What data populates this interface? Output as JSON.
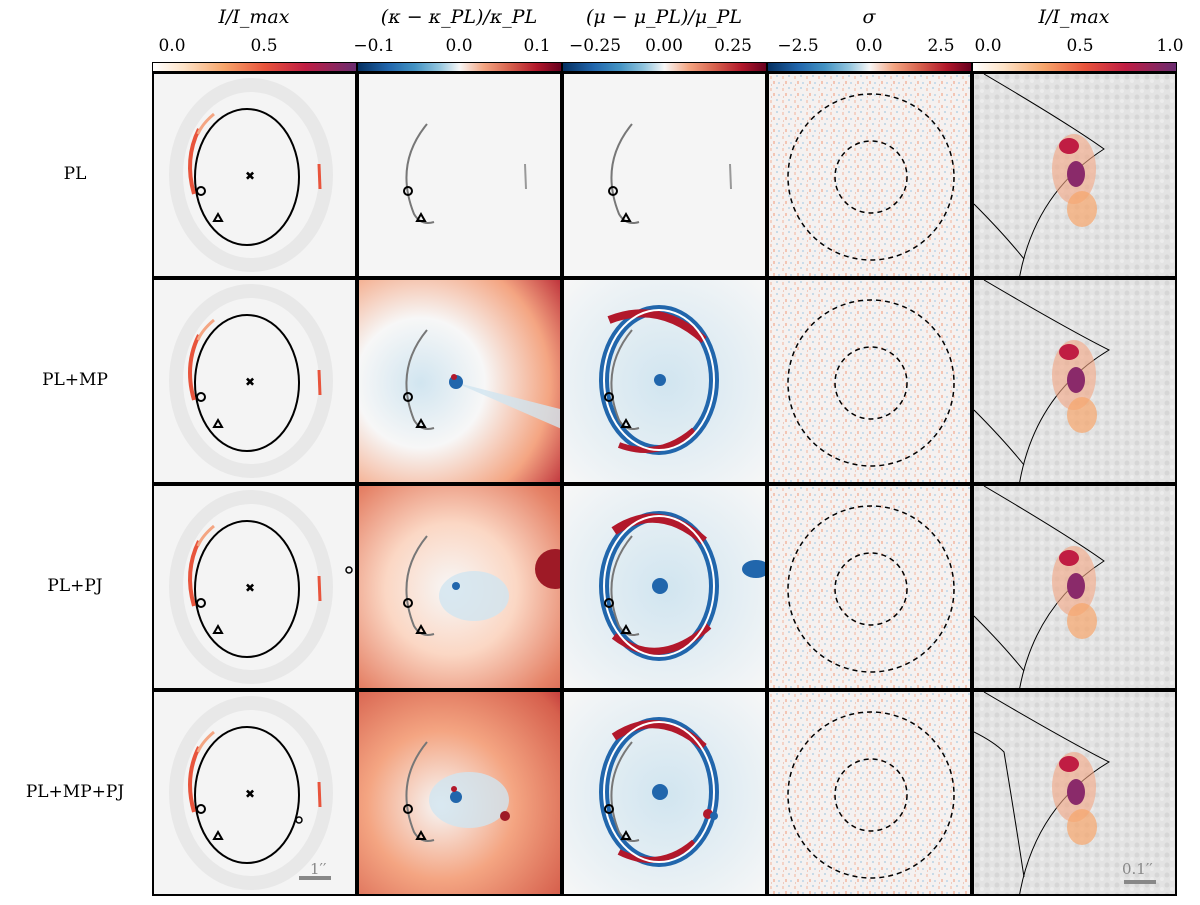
{
  "colorbars": [
    {
      "title": "I/I_max",
      "ticks": [
        "0.0",
        "0.5"
      ],
      "cmap": "sunset"
    },
    {
      "title": "(κ − κ_PL)/κ_PL",
      "ticks": [
        "−0.1",
        "0.0",
        "0.1"
      ],
      "cmap": "rdbu"
    },
    {
      "title": "(μ − μ_PL)/μ_PL",
      "ticks": [
        "−0.25",
        "0.00",
        "0.25"
      ],
      "cmap": "rdbu"
    },
    {
      "title": "σ",
      "ticks": [
        "−2.5",
        "0.0",
        "2.5"
      ],
      "cmap": "rdbu"
    },
    {
      "title": "I/I_max",
      "ticks": [
        "0.0",
        "0.5",
        "1.0"
      ],
      "cmap": "sunset"
    }
  ],
  "rows": [
    {
      "label": "PL"
    },
    {
      "label": "PL+MP"
    },
    {
      "label": "PL+PJ"
    },
    {
      "label": "PL+MP+PJ"
    }
  ],
  "scalebars": {
    "left": "1′′",
    "right": "0.1′′"
  },
  "colors": {
    "red_dark": "#b2182b",
    "blue_dark": "#2166ac",
    "neutral": "#f5f5f5",
    "purple": "#6a2c70",
    "orange": "#f4a582"
  }
}
